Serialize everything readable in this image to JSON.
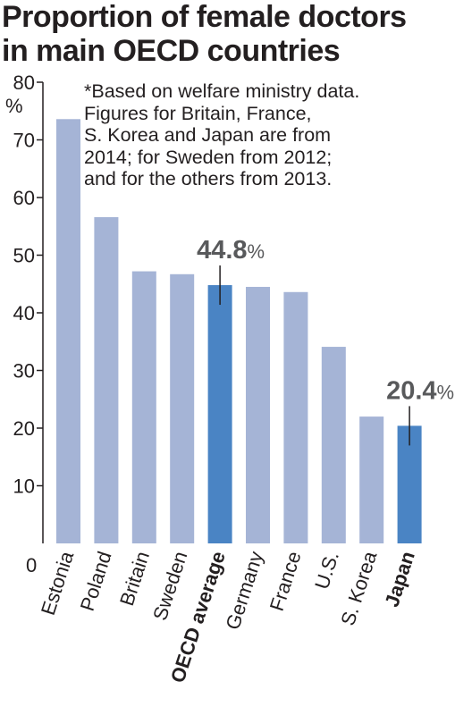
{
  "title": "Proportion of female doctors\nin main OECD countries",
  "note": "*Based on welfare ministry data.\nFigures for Britain, France,\nS. Korea and Japan are from\n2014; for Sweden from 2012;\nand for the others from 2013.",
  "colors": {
    "bar": "#a5b4d6",
    "highlight": "#4a84c4",
    "axis": "#231f20",
    "callout_text": "#58595b"
  },
  "chart_data": {
    "type": "bar",
    "title": "Proportion of female doctors in main OECD countries",
    "ylabel": "%",
    "xlabel": "",
    "ylim": [
      0,
      80
    ],
    "yticks": [
      0,
      10,
      20,
      30,
      40,
      50,
      60,
      70,
      80
    ],
    "grid": false,
    "categories": [
      "Estonia",
      "Poland",
      "Britain",
      "Sweden",
      "OECD average",
      "Germany",
      "France",
      "U.S.",
      "S. Korea",
      "Japan"
    ],
    "values": [
      73.6,
      56.6,
      47.2,
      46.7,
      44.8,
      44.5,
      43.6,
      34.1,
      22.0,
      20.4
    ],
    "highlighted": [
      "OECD average",
      "Japan"
    ],
    "annotations": [
      {
        "category": "OECD average",
        "value": "44.8",
        "unit": "%"
      },
      {
        "category": "Japan",
        "value": "20.4",
        "unit": "%"
      }
    ]
  }
}
